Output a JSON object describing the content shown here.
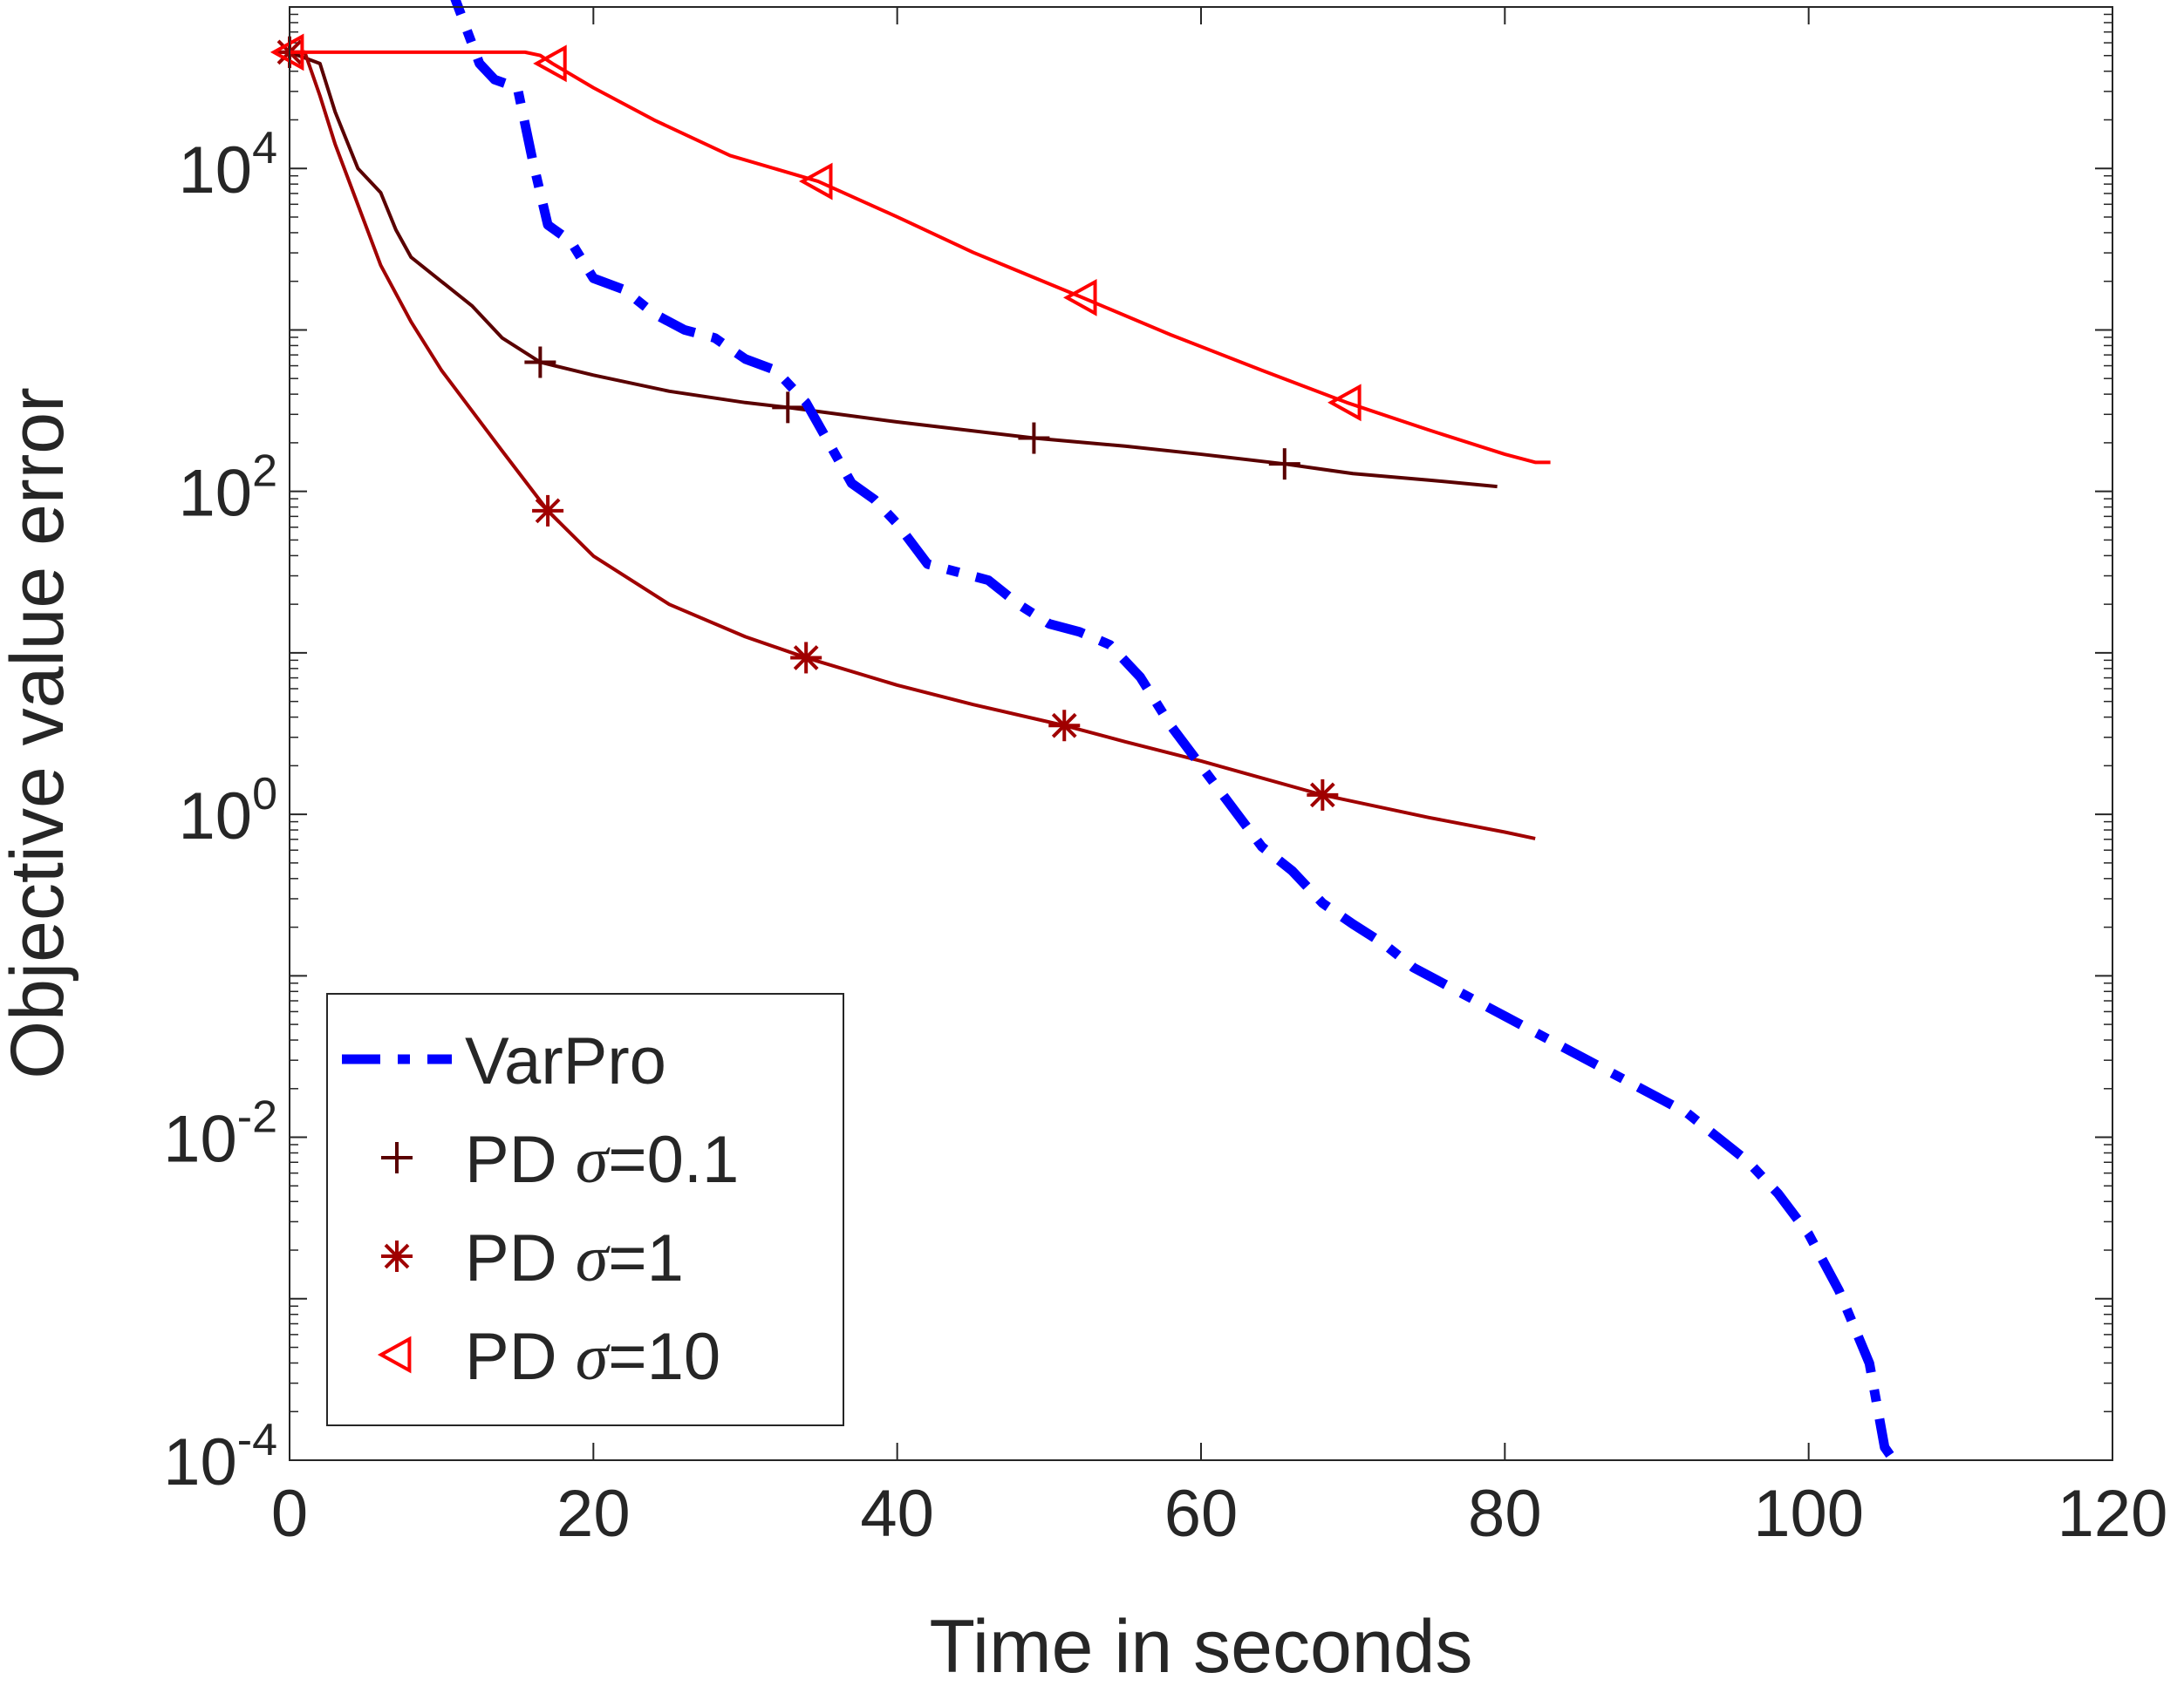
{
  "chart_data": {
    "type": "line",
    "xlabel": "Time in seconds",
    "ylabel": "Objective value error",
    "xscale": "linear",
    "yscale": "log",
    "xlim": [
      0,
      120
    ],
    "ylim_exponent": [
      -4,
      5
    ],
    "xticks": [
      0,
      20,
      40,
      60,
      80,
      100,
      120
    ],
    "xtick_labels": [
      "0",
      "20",
      "40",
      "60",
      "80",
      "100",
      "120"
    ],
    "yticks": [
      {
        "base": "10",
        "exp": "-4",
        "value": -4
      },
      {
        "base": "10",
        "exp": "-2",
        "value": -2
      },
      {
        "base": "10",
        "exp": "0",
        "value": 0
      },
      {
        "base": "10",
        "exp": "2",
        "value": 2
      },
      {
        "base": "10",
        "exp": "4",
        "value": 4
      }
    ],
    "legend_position": "bottom-left",
    "series": [
      {
        "name": "VarPro",
        "legend": {
          "prefix": "VarPro",
          "symbol": "",
          "suffix": ""
        },
        "color": "#0000ff",
        "style": "dashdot",
        "marker": "none",
        "x": [
          0,
          2,
          4,
          6,
          8,
          9.5,
          10.5,
          11.5,
          12.5,
          13.5,
          15,
          16,
          17,
          18.5,
          20,
          22,
          24,
          26,
          28,
          30,
          32,
          34,
          35.5,
          37,
          38.5,
          40,
          42,
          44,
          46,
          48,
          50,
          52,
          54,
          56,
          58,
          60,
          62,
          64,
          66,
          68,
          70,
          72,
          74,
          76,
          78,
          80,
          82,
          84,
          86,
          88,
          90,
          92,
          94,
          96,
          98,
          100,
          102,
          104,
          105,
          105.6,
          105.8,
          105.9
        ],
        "y_exp": [
          5.43,
          5.43,
          5.42,
          5.4,
          5.35,
          5.3,
          5.15,
          4.9,
          4.65,
          4.55,
          4.5,
          4.05,
          3.65,
          3.55,
          3.32,
          3.25,
          3.1,
          3.0,
          2.95,
          2.82,
          2.75,
          2.55,
          2.3,
          2.05,
          1.95,
          1.8,
          1.55,
          1.5,
          1.45,
          1.3,
          1.18,
          1.13,
          1.05,
          0.85,
          0.55,
          0.3,
          0.05,
          -0.2,
          -0.35,
          -0.55,
          -0.68,
          -0.8,
          -0.95,
          -1.05,
          -1.15,
          -1.25,
          -1.35,
          -1.45,
          -1.55,
          -1.65,
          -1.75,
          -1.85,
          -2.0,
          -2.15,
          -2.35,
          -2.6,
          -2.95,
          -3.4,
          -3.92,
          -4.0,
          -4.04,
          -4.06
        ]
      },
      {
        "name": "PD σ=0.1",
        "legend": {
          "prefix": "PD ",
          "symbol": "σ",
          "suffix": "=0.1"
        },
        "color": "#5a0000",
        "style": "solid",
        "marker": "plus",
        "marker_x": [
          0,
          16.5,
          32.8,
          49,
          65.5
        ],
        "x": [
          0,
          2,
          3,
          4.5,
          6,
          7,
          8,
          10,
          12,
          14,
          16.5,
          20,
          25,
          30,
          32.8,
          40,
          49,
          55,
          60,
          65.5,
          70,
          75,
          79.5
        ],
        "y_exp": [
          4.72,
          4.65,
          4.35,
          4.0,
          3.85,
          3.62,
          3.45,
          3.3,
          3.15,
          2.95,
          2.8,
          2.72,
          2.62,
          2.55,
          2.52,
          2.43,
          2.33,
          2.28,
          2.23,
          2.17,
          2.11,
          2.07,
          2.03
        ]
      },
      {
        "name": "PD σ=1",
        "legend": {
          "prefix": "PD ",
          "symbol": "σ",
          "suffix": "=1"
        },
        "color": "#a00000",
        "style": "solid",
        "marker": "asterisk",
        "marker_x": [
          0,
          17,
          34,
          51,
          68
        ],
        "x": [
          0,
          1,
          2,
          3,
          4,
          6,
          8,
          10,
          12,
          14,
          17,
          20,
          25,
          30,
          34,
          40,
          45,
          51,
          55,
          60,
          68,
          75,
          80,
          82
        ],
        "y_exp": [
          4.72,
          4.72,
          4.45,
          4.15,
          3.9,
          3.4,
          3.05,
          2.75,
          2.5,
          2.25,
          1.88,
          1.6,
          1.3,
          1.1,
          0.97,
          0.8,
          0.68,
          0.55,
          0.45,
          0.33,
          0.12,
          -0.02,
          -0.11,
          -0.15
        ]
      },
      {
        "name": "PD σ=10",
        "legend": {
          "prefix": "PD ",
          "symbol": "σ",
          "suffix": "=10"
        },
        "color": "#ff0000",
        "style": "solid",
        "marker": "triangle-left",
        "marker_x": [
          0,
          17.3,
          34.8,
          52.2,
          69.6
        ],
        "x": [
          0,
          15.5,
          16.5,
          17.3,
          20,
          24,
          29,
          34.8,
          40,
          45,
          52.2,
          58,
          64,
          69.6,
          75,
          80,
          82,
          83
        ],
        "y_exp": [
          4.72,
          4.72,
          4.7,
          4.65,
          4.5,
          4.3,
          4.08,
          3.92,
          3.7,
          3.48,
          3.2,
          2.97,
          2.75,
          2.55,
          2.38,
          2.23,
          2.18,
          2.18
        ]
      }
    ]
  }
}
